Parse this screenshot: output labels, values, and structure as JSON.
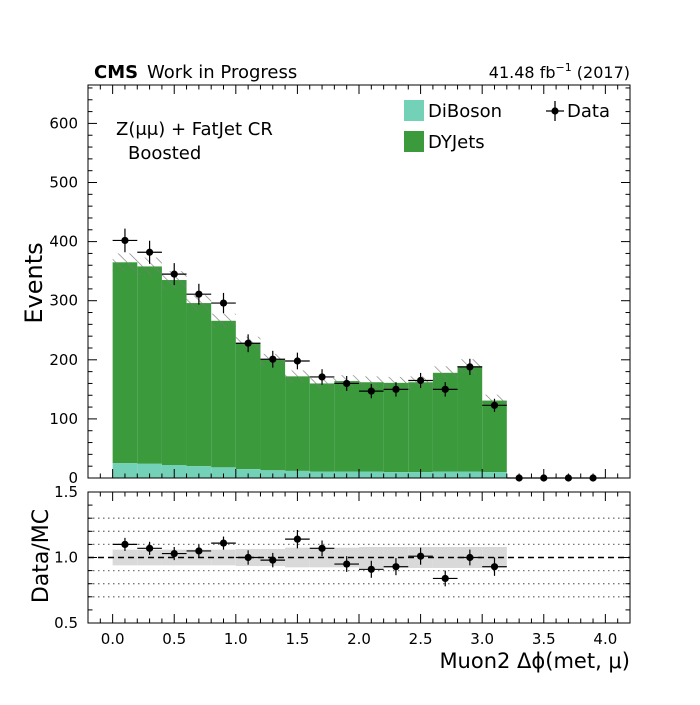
{
  "header": {
    "experiment": "CMS",
    "status": "Work in Progress",
    "lumi_text": "41.48 fb",
    "lumi_exp": "−1",
    "lumi_year": "(2017)"
  },
  "annotation": {
    "region_line1": "Z(μμ) + FatJet CR",
    "region_line2": "Boosted"
  },
  "chart_data": [
    {
      "type": "bar",
      "stacked": true,
      "bin_edges": [
        0.0,
        0.2,
        0.4,
        0.6,
        0.8,
        1.0,
        1.2,
        1.4,
        1.6,
        1.8,
        2.0,
        2.2,
        2.4,
        2.6,
        2.8,
        3.0,
        3.2
      ],
      "xlim": [
        -0.2,
        4.2
      ],
      "ylim": [
        0,
        665
      ],
      "yticks": [
        0,
        100,
        200,
        300,
        400,
        500,
        600
      ],
      "xlabel": "",
      "ylabel": "Events",
      "series": [
        {
          "name": "DiBoson",
          "color": "#73d1b7",
          "values": [
            25,
            24,
            22,
            20,
            18,
            15,
            13,
            12,
            11,
            11,
            11,
            10,
            10,
            11,
            11,
            10
          ]
        },
        {
          "name": "DYJets",
          "color": "#3a9a3c",
          "values": [
            340,
            334,
            313,
            276,
            248,
            213,
            187,
            160,
            149,
            153,
            151,
            151,
            152,
            167,
            178,
            121
          ]
        }
      ],
      "mc_uncertainty": [
        15,
        15,
        15,
        13,
        12,
        11,
        10,
        10,
        9,
        10,
        10,
        10,
        10,
        11,
        12,
        10
      ],
      "data": {
        "name": "Data",
        "x": [
          0.1,
          0.3,
          0.5,
          0.7,
          0.9,
          1.1,
          1.3,
          1.5,
          1.7,
          1.9,
          2.1,
          2.3,
          2.5,
          2.7,
          2.9,
          3.1,
          3.3,
          3.5,
          3.7,
          3.9
        ],
        "y": [
          402,
          382,
          345,
          311,
          296,
          228,
          201,
          198,
          171,
          160,
          147,
          150,
          165,
          150,
          188,
          123,
          0,
          0,
          0,
          0
        ],
        "yerr": [
          20,
          19.5,
          18.6,
          17.6,
          17.2,
          15.1,
          14.2,
          14.1,
          13.1,
          12.6,
          12.1,
          12.2,
          12.8,
          12.2,
          13.7,
          11.1,
          0,
          0,
          0,
          0
        ]
      },
      "legend": {
        "placement": "top-right",
        "entries": [
          {
            "label": "DiBoson",
            "kind": "fill",
            "color": "#73d1b7"
          },
          {
            "label": "DYJets",
            "kind": "fill",
            "color": "#3a9a3c"
          },
          {
            "label": "Data",
            "kind": "marker",
            "color": "#000000"
          }
        ]
      }
    },
    {
      "type": "scatter",
      "xlim": [
        -0.2,
        4.2
      ],
      "ylim": [
        0.5,
        1.5
      ],
      "xticks": [
        0.0,
        0.5,
        1.0,
        1.5,
        2.0,
        2.5,
        3.0,
        3.5,
        4.0
      ],
      "xtick_labels": [
        "0.0",
        "0.5",
        "1.0",
        "1.5",
        "2.0",
        "2.5",
        "3.0",
        "3.5",
        "4.0"
      ],
      "yticks": [
        0.5,
        1.0,
        1.5
      ],
      "ytick_labels": [
        "0.5",
        "1.0",
        "1.5"
      ],
      "xlabel": "Muon2 Δϕ(met, μ)",
      "ylabel": "Data/MC",
      "x": [
        0.1,
        0.3,
        0.5,
        0.7,
        0.9,
        1.1,
        1.3,
        1.5,
        1.7,
        1.9,
        2.1,
        2.3,
        2.5,
        2.7,
        2.9,
        3.1
      ],
      "y": [
        1.1,
        1.07,
        1.03,
        1.05,
        1.11,
        1.0,
        0.98,
        1.14,
        1.07,
        0.95,
        0.91,
        0.93,
        1.01,
        0.84,
        1.0,
        0.93
      ],
      "yerr": [
        0.05,
        0.05,
        0.05,
        0.05,
        0.05,
        0.055,
        0.055,
        0.07,
        0.06,
        0.06,
        0.065,
        0.065,
        0.065,
        0.06,
        0.06,
        0.07
      ],
      "band_lo": [
        0.94,
        0.94,
        0.94,
        0.94,
        0.94,
        0.935,
        0.935,
        0.925,
        0.925,
        0.925,
        0.92,
        0.92,
        0.92,
        0.92,
        0.92,
        0.92
      ],
      "band_hi": [
        1.06,
        1.06,
        1.06,
        1.06,
        1.06,
        1.065,
        1.065,
        1.075,
        1.075,
        1.075,
        1.08,
        1.08,
        1.08,
        1.08,
        1.08,
        1.08
      ],
      "reference_line": 1.0,
      "dotted_lines": [
        0.7,
        0.8,
        0.9,
        1.1,
        1.2,
        1.3
      ],
      "grid": false
    }
  ]
}
